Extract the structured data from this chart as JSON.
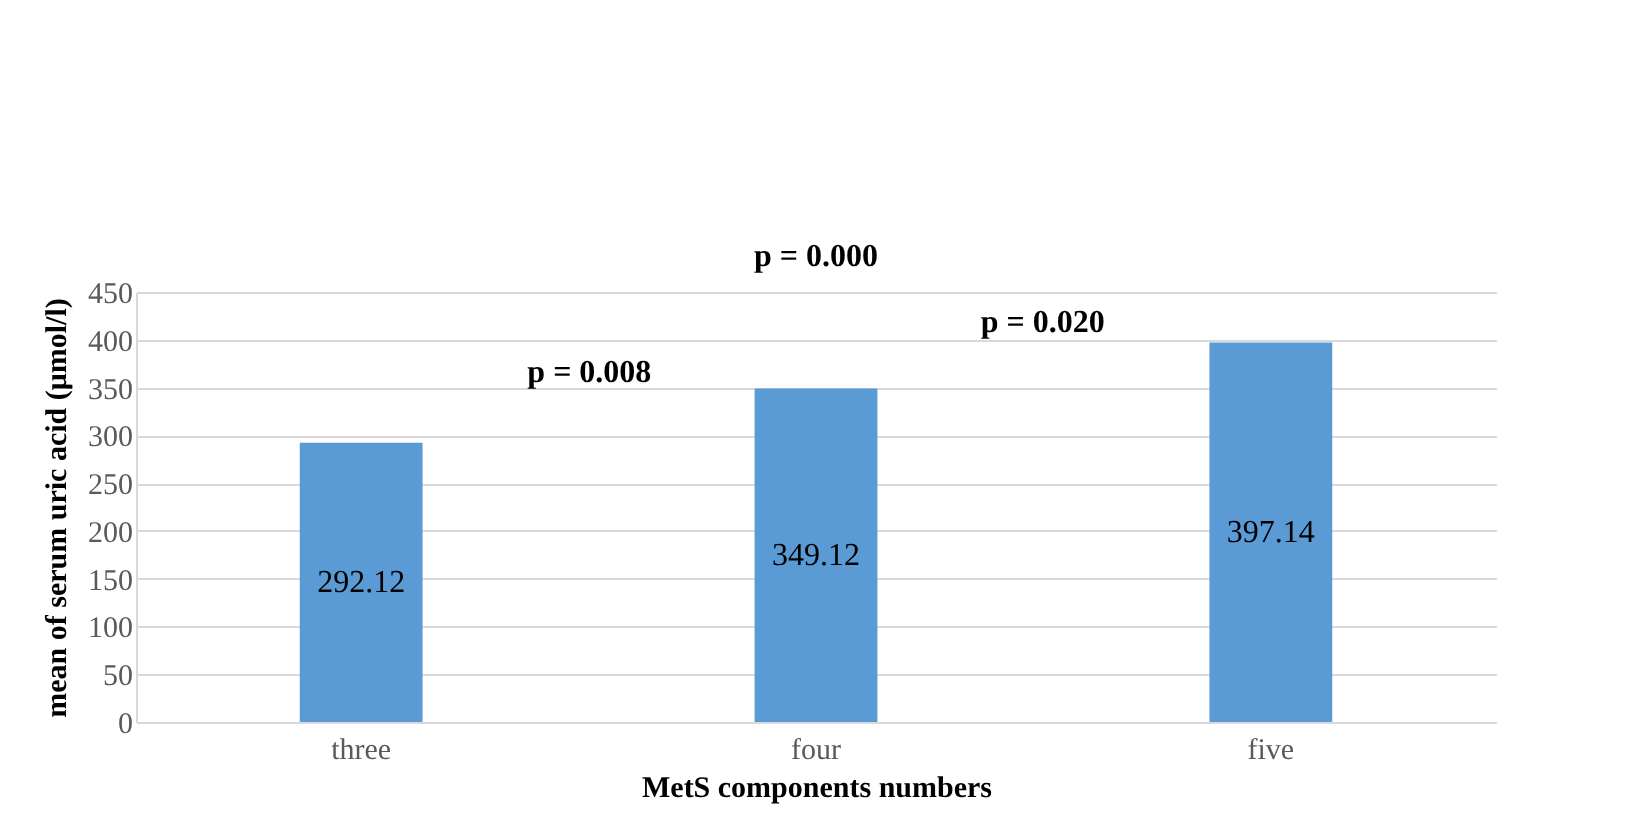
{
  "chart_data": {
    "type": "bar",
    "xlabel": "MetS components numbers",
    "ylabel": "mean of serum uric acid (μmol/l)",
    "categories": [
      "three",
      "four",
      "five"
    ],
    "values": [
      292.12,
      349.12,
      397.14
    ],
    "color": "#5b9bd5",
    "ylim": [
      0,
      450
    ],
    "yticks": [
      0,
      50,
      100,
      150,
      200,
      250,
      300,
      350,
      400,
      450
    ],
    "grid": "y",
    "data_labels": true,
    "annotations": [
      "p = 0.000",
      "p = 0.008",
      "p = 0.020"
    ]
  }
}
